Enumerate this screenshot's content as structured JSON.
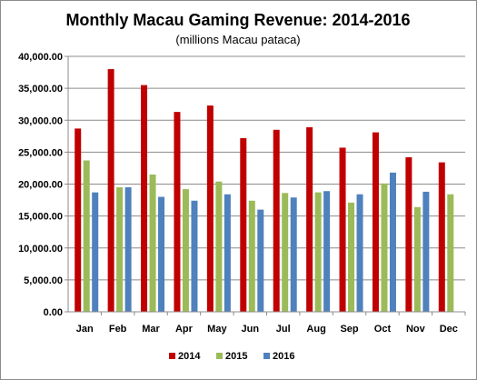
{
  "chart_data": {
    "type": "bar",
    "title": "Monthly Macau Gaming Revenue: 2014-2016",
    "subtitle": "(millions Macau pataca)",
    "xlabel": "",
    "ylabel": "",
    "ylim": [
      0,
      40000
    ],
    "yticks": [
      0,
      5000,
      10000,
      15000,
      20000,
      25000,
      30000,
      35000,
      40000
    ],
    "ytick_labels": [
      "0.00",
      "5,000.00",
      "10,000.00",
      "15,000.00",
      "20,000.00",
      "25,000.00",
      "30,000.00",
      "35,000.00",
      "40,000.00"
    ],
    "grid": true,
    "legend_position": "bottom",
    "categories": [
      "Jan",
      "Feb",
      "Mar",
      "Apr",
      "May",
      "Jun",
      "Jul",
      "Aug",
      "Sep",
      "Oct",
      "Nov",
      "Dec"
    ],
    "series": [
      {
        "name": "2014",
        "color": "#c00000",
        "values": [
          28700,
          38000,
          35500,
          31300,
          32300,
          27200,
          28500,
          28900,
          25700,
          28100,
          24200,
          23400
        ]
      },
      {
        "name": "2015",
        "color": "#9bbb59",
        "values": [
          23700,
          19500,
          21500,
          19200,
          20400,
          17400,
          18600,
          18700,
          17100,
          20100,
          16400,
          18400
        ]
      },
      {
        "name": "2016",
        "color": "#4f81bd",
        "values": [
          18700,
          19500,
          18000,
          17400,
          18400,
          16000,
          17900,
          18900,
          18400,
          21800,
          18800,
          null
        ]
      }
    ]
  }
}
